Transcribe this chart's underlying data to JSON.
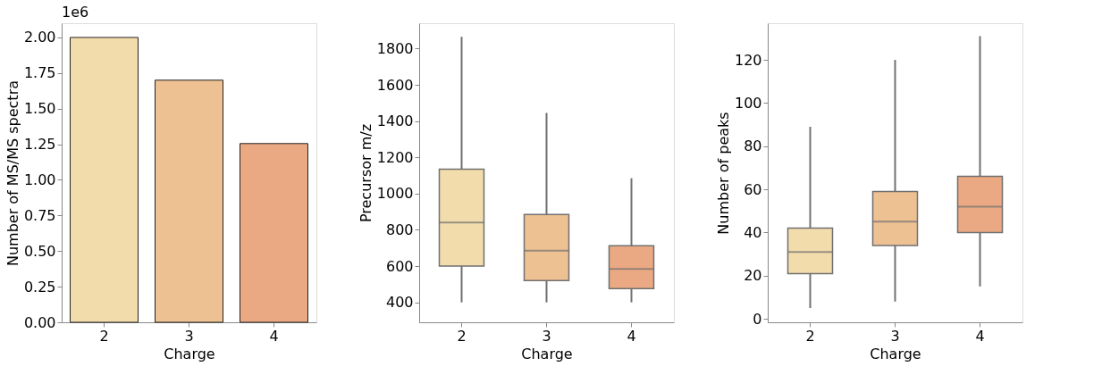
{
  "chart_data": [
    {
      "type": "bar",
      "xlabel": "Charge",
      "ylabel": "Number of MS/MS spectra",
      "categories": [
        "2",
        "3",
        "4"
      ],
      "values": [
        2.0,
        1.7,
        1.255
      ],
      "colors": [
        "#f2dcab",
        "#eec193",
        "#eba983"
      ],
      "ylim": [
        0,
        2.1
      ],
      "yticks": [
        {
          "value": 0,
          "label": "0.00"
        },
        0.25,
        {
          "value": 0.5,
          "label": "0.50"
        },
        0.75,
        {
          "value": 1,
          "label": "1.00"
        },
        1.25,
        {
          "value": 1.5,
          "label": "1.50"
        },
        1.75,
        {
          "value": 2,
          "label": "2.00"
        }
      ],
      "annotations": [
        "1e6"
      ]
    },
    {
      "type": "box",
      "xlabel": "Charge",
      "ylabel": "Precursor m/z",
      "categories": [
        "2",
        "3",
        "4"
      ],
      "colors": [
        "#f2dcab",
        "#eec193",
        "#eba983"
      ],
      "ylim": [
        290,
        1940
      ],
      "yticks": [
        400,
        600,
        800,
        1000,
        1200,
        1400,
        1600,
        1800
      ],
      "boxes": [
        {
          "low": 400,
          "q1": 600,
          "median": 840,
          "q3": 1135,
          "high": 1865
        },
        {
          "low": 400,
          "q1": 520,
          "median": 685,
          "q3": 885,
          "high": 1445
        },
        {
          "low": 400,
          "q1": 476,
          "median": 584,
          "q3": 712,
          "high": 1085
        }
      ]
    },
    {
      "type": "box",
      "xlabel": "Charge",
      "ylabel": "Number of peaks",
      "categories": [
        "2",
        "3",
        "4"
      ],
      "colors": [
        "#f2dcab",
        "#eec193",
        "#eba983"
      ],
      "ylim": [
        -1.6,
        137
      ],
      "yticks": [
        0,
        20,
        40,
        60,
        80,
        100,
        120
      ],
      "boxes": [
        {
          "low": 5,
          "q1": 21,
          "median": 31,
          "q3": 42,
          "high": 89
        },
        {
          "low": 8,
          "q1": 34,
          "median": 45,
          "q3": 59,
          "high": 120
        },
        {
          "low": 15,
          "q1": 40,
          "median": 52,
          "q3": 66,
          "high": 131
        }
      ]
    }
  ]
}
